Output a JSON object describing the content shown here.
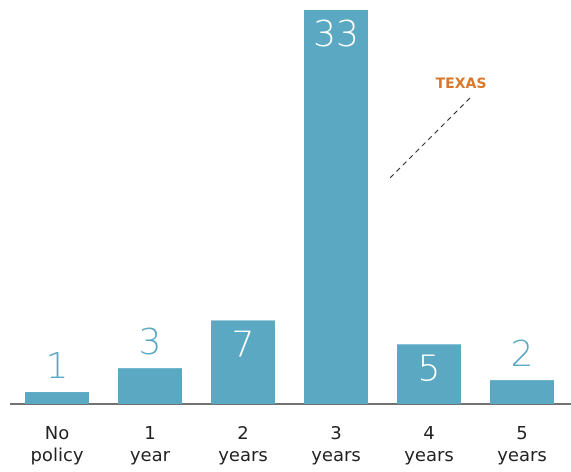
{
  "chart_data": {
    "type": "bar",
    "categories": [
      "No policy",
      "1 year",
      "2 years",
      "3 years",
      "4 years",
      "5 years"
    ],
    "values": [
      1,
      3,
      7,
      33,
      5,
      2
    ],
    "color": "#5ba8c3",
    "annotation": "TEXAS"
  }
}
